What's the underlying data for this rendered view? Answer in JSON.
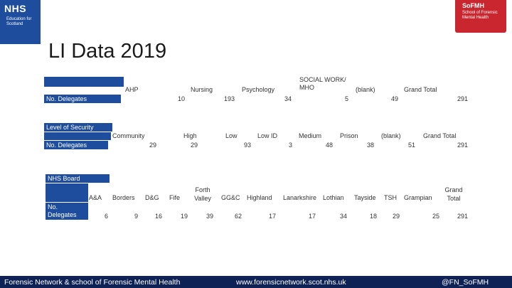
{
  "logos": {
    "nhs": {
      "name": "NHS",
      "subtitle": "Education for Scotland"
    },
    "sofmh": {
      "name": "SoFMH",
      "subtitle": "School of Forensic Mental Health"
    }
  },
  "title": "LI Data 2019",
  "table1": {
    "headers": [
      "AHP",
      "Nursing",
      "Psychology",
      "SOCIAL WORK/ MHO",
      "(blank)",
      "Grand Total"
    ],
    "row_label": "No. Delegates",
    "values": [
      "10",
      "193",
      "34",
      "5",
      "49",
      "291"
    ]
  },
  "table2": {
    "label": "Level of Security",
    "headers": [
      "Community",
      "High",
      "Low",
      "Low ID",
      "Medium",
      "Prison",
      "(blank)",
      "Grand Total"
    ],
    "row_label": "No. Delegates",
    "values": [
      "29",
      "29",
      "93",
      "3",
      "48",
      "38",
      "51",
      "291"
    ]
  },
  "table3": {
    "label": "NHS Board",
    "headers": [
      "A&A",
      "Borders",
      "D&G",
      "Fife",
      "Forth Valley",
      "GG&C",
      "Highland",
      "Lanarkshire",
      "Lothian",
      "Tayside",
      "TSH",
      "Grampian",
      "Grand Total"
    ],
    "row_label": "No. Delegates",
    "values": [
      "6",
      "9",
      "16",
      "19",
      "39",
      "62",
      "17",
      "17",
      "34",
      "18",
      "29",
      "25",
      "291"
    ]
  },
  "footer": {
    "org": "Forensic Network & school of Forensic Mental Health",
    "url": "www.forensicnetwork.scot.nhs.uk",
    "handle": "@FN_SoFMH"
  }
}
